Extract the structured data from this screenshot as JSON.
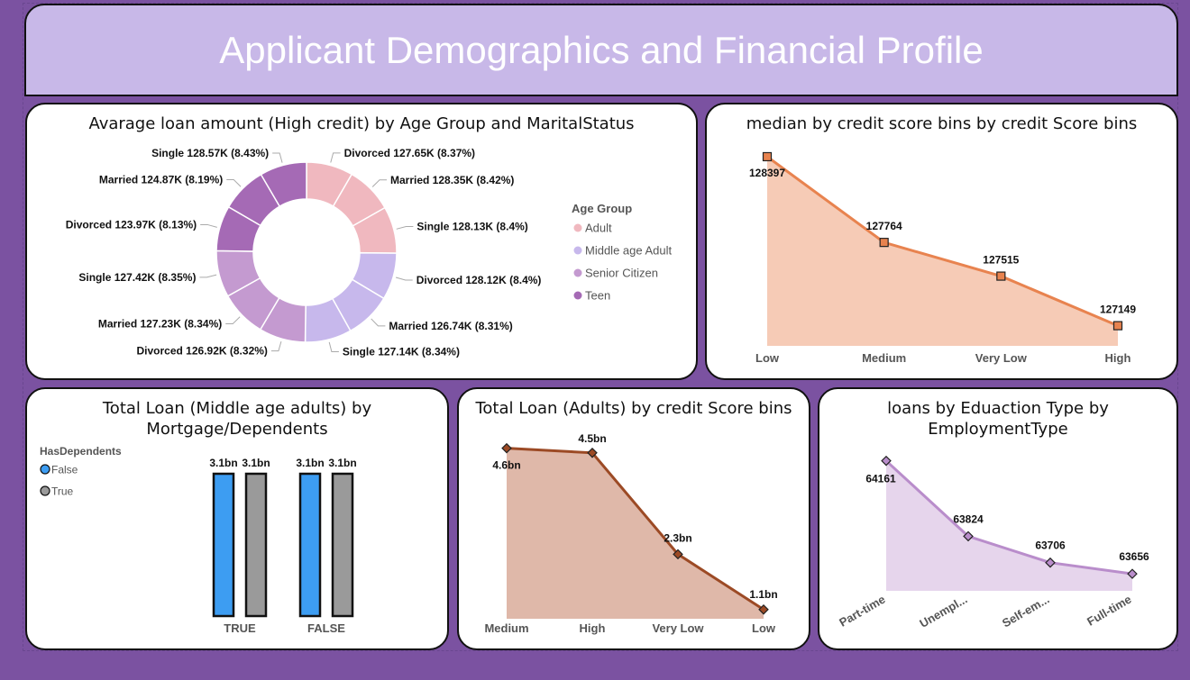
{
  "header": {
    "title": "Applicant Demographics and Financial Profile"
  },
  "charts": {
    "donut": {
      "title": "Avarage loan amount (High credit) by Age Group and MaritalStatus",
      "legend_title": "Age Group",
      "legend": [
        {
          "name": "Adult",
          "color": "#f0b8bf"
        },
        {
          "name": "Middle age Adult",
          "color": "#c7b8ec"
        },
        {
          "name": "Senior Citizen",
          "color": "#c49ad0"
        },
        {
          "name": "Teen",
          "color": "#a56ab5"
        }
      ]
    },
    "median": {
      "title": "median by credit score bins by credit Score bins"
    },
    "mortgage": {
      "title_line1": "Total Loan (Middle age adults) by",
      "title_line2": "Mortgage/Dependents",
      "legend_title": "HasDependents",
      "legend": [
        {
          "name": "False",
          "color": "#3d9df2"
        },
        {
          "name": "True",
          "color": "#9a9a9a"
        }
      ]
    },
    "adults": {
      "title": "Total Loan (Adults) by credit Score bins"
    },
    "education": {
      "title_line1": "loans by Eduaction Type by",
      "title_line2": "EmploymentType"
    }
  },
  "chart_data": [
    {
      "type": "pie",
      "donut": true,
      "title": "Avarage loan amount (High credit) by Age Group and MaritalStatus",
      "slices": [
        {
          "group": "Adult",
          "label": "Divorced 127.65K (8.37%)",
          "value": 127.65
        },
        {
          "group": "Adult",
          "label": "Married 128.35K (8.42%)",
          "value": 128.35
        },
        {
          "group": "Adult",
          "label": "Single 128.13K (8.4%)",
          "value": 128.13
        },
        {
          "group": "Middle age Adult",
          "label": "Divorced 128.12K (8.4%)",
          "value": 128.12
        },
        {
          "group": "Middle age Adult",
          "label": "Married 126.74K (8.31%)",
          "value": 126.74
        },
        {
          "group": "Middle age Adult",
          "label": "Single 127.14K (8.34%)",
          "value": 127.14
        },
        {
          "group": "Senior Citizen",
          "label": "Divorced 126.92K (8.32%)",
          "value": 126.92
        },
        {
          "group": "Senior Citizen",
          "label": "Married 127.23K (8.34%)",
          "value": 127.23
        },
        {
          "group": "Senior Citizen",
          "label": "Single 127.42K (8.35%)",
          "value": 127.42
        },
        {
          "group": "Teen",
          "label": "Divorced 123.97K (8.13%)",
          "value": 123.97
        },
        {
          "group": "Teen",
          "label": "Married 124.87K (8.19%)",
          "value": 124.87
        },
        {
          "group": "Teen",
          "label": "Single 128.57K (8.43%)",
          "value": 128.57
        }
      ],
      "legend_placement": "right"
    },
    {
      "type": "area",
      "title": "median by credit score bins by credit Score bins",
      "categories": [
        "Low",
        "Medium",
        "Very Low",
        "High"
      ],
      "values": [
        128397,
        127764,
        127515,
        127149
      ],
      "data_labels": [
        "128397",
        "127764",
        "127515",
        "127149"
      ],
      "ylim": [
        127000,
        128450
      ],
      "color": "#e8834f",
      "fill": "#f6cbb6"
    },
    {
      "type": "bar",
      "title": "Total Loan (Middle age adults) by Mortgage/Dependents",
      "categories": [
        "TRUE",
        "FALSE"
      ],
      "series": [
        {
          "name": "False",
          "values": [
            3.1,
            3.1
          ],
          "labels": [
            "3.1bn",
            "3.1bn"
          ]
        },
        {
          "name": "True",
          "values": [
            3.1,
            3.1
          ],
          "labels": [
            "3.1bn",
            "3.1bn"
          ]
        }
      ],
      "ylim": [
        0,
        3.1
      ],
      "legend_placement": "top-left"
    },
    {
      "type": "area",
      "title": "Total Loan (Adults) by credit Score bins",
      "categories": [
        "Medium",
        "High",
        "Very Low",
        "Low"
      ],
      "values": [
        4.6,
        4.5,
        2.3,
        1.1
      ],
      "data_labels": [
        "4.6bn",
        "4.5bn",
        "2.3bn",
        "1.1bn"
      ],
      "ylim": [
        0.9,
        4.75
      ],
      "color": "#9c4a25",
      "fill": "#dfb8a9"
    },
    {
      "type": "area",
      "title": "loans by Eduaction Type by EmploymentType",
      "categories": [
        "Part-time",
        "Unempl...",
        "Self-em...",
        "Full-time"
      ],
      "values": [
        64161,
        63824,
        63706,
        63656
      ],
      "data_labels": [
        "64161",
        "63824",
        "63706",
        "63656"
      ],
      "ylim": [
        63580,
        64200
      ],
      "color": "#b98dcb",
      "fill": "#e6d5ec"
    }
  ]
}
